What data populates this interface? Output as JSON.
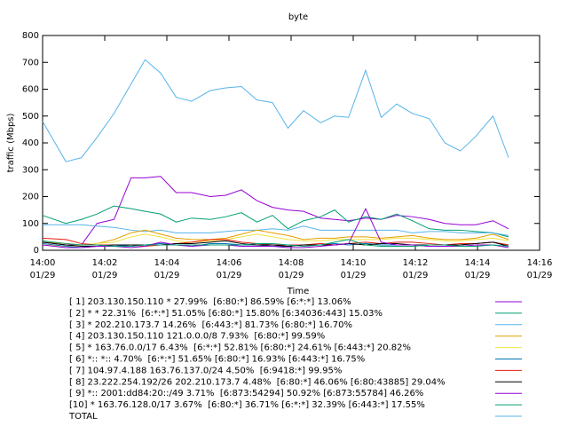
{
  "chart_data": {
    "type": "line",
    "title": "byte",
    "xlabel": "Time",
    "ylabel": "traffic (Mbps)",
    "x": [
      0,
      0.75,
      1.25,
      1.75,
      2.3,
      2.85,
      3.3,
      3.8,
      4.3,
      4.8,
      5.4,
      5.9,
      6.4,
      6.9,
      7.4,
      7.9,
      8.4,
      8.95,
      9.4,
      9.85,
      10.4,
      10.9,
      11.4,
      11.9,
      12.45,
      12.95,
      13.45,
      13.95,
      14.5,
      15.0
    ],
    "xlim": [
      0,
      16
    ],
    "xticks": [
      {
        "value": 0,
        "label": "14:00\n01/29"
      },
      {
        "value": 2,
        "label": "14:02\n01/29"
      },
      {
        "value": 4,
        "label": "14:04\n01/29"
      },
      {
        "value": 6,
        "label": "14:06\n01/29"
      },
      {
        "value": 8,
        "label": "14:08\n01/29"
      },
      {
        "value": 10,
        "label": "14:10\n01/29"
      },
      {
        "value": 12,
        "label": "14:12\n01/29"
      },
      {
        "value": 14,
        "label": "14:14\n01/29"
      },
      {
        "value": 16,
        "label": "14:16\n01/29"
      }
    ],
    "ylim": [
      0,
      800
    ],
    "yticks": [
      0,
      100,
      200,
      300,
      400,
      500,
      600,
      700,
      800
    ],
    "grid": false,
    "series": [
      {
        "name": "[ 1] 203.130.150.110 * 27.99%  [6:80:*] 86.59% [6:*:*] 13.06%",
        "color": "#9400d3",
        "values": [
          30,
          20,
          20,
          100,
          115,
          270,
          270,
          275,
          215,
          215,
          200,
          205,
          225,
          185,
          160,
          150,
          145,
          120,
          115,
          110,
          120,
          115,
          130,
          125,
          115,
          100,
          95,
          95,
          110,
          80
        ]
      },
      {
        "name": "[ 2] * * 22.31%  [6:*:*] 51.05% [6:80:*] 15.80% [6:34036:443] 15.03%",
        "color": "#009e73",
        "values": [
          130,
          100,
          115,
          135,
          165,
          155,
          145,
          135,
          105,
          120,
          115,
          125,
          140,
          105,
          130,
          80,
          110,
          125,
          150,
          105,
          125,
          115,
          135,
          110,
          80,
          75,
          75,
          70,
          65,
          50
        ]
      },
      {
        "name": "[ 3] * 202.210.173.7 14.26%  [6:443:*] 81.73% [6:80:*] 16.70%",
        "color": "#56b4e9",
        "values": [
          95,
          95,
          95,
          90,
          85,
          75,
          70,
          75,
          65,
          65,
          65,
          70,
          75,
          75,
          80,
          75,
          90,
          75,
          75,
          75,
          75,
          75,
          75,
          65,
          70,
          70,
          65,
          65,
          65,
          55
        ]
      },
      {
        "name": "[ 4] 203.130.150.110 121.0.0.0/8 7.93%  [6:80:*] 99.59%",
        "color": "#e69f00",
        "values": [
          30,
          25,
          20,
          25,
          40,
          65,
          75,
          60,
          45,
          40,
          40,
          45,
          60,
          75,
          65,
          55,
          40,
          45,
          45,
          50,
          50,
          45,
          50,
          55,
          45,
          40,
          40,
          45,
          60,
          40
        ]
      },
      {
        "name": "[ 5] * 163.76.0.0/17 6.43%  [6:*:*] 52.81% [6:80:*] 24.61% [6:443:*] 20.82%",
        "color": "#f0e442",
        "values": [
          20,
          15,
          20,
          25,
          30,
          50,
          60,
          50,
          35,
          30,
          35,
          40,
          50,
          60,
          50,
          40,
          35,
          35,
          40,
          40,
          40,
          40,
          45,
          45,
          40,
          35,
          35,
          40,
          45,
          35
        ]
      },
      {
        "name": "[ 6] *:: *:: 4.70%  [6:*:*] 51.65% [6:80:*] 16.93% [6:443:*] 16.75%",
        "color": "#0072b2",
        "values": [
          25,
          15,
          10,
          15,
          20,
          15,
          20,
          25,
          20,
          15,
          25,
          25,
          20,
          20,
          15,
          15,
          20,
          20,
          25,
          20,
          25,
          20,
          20,
          20,
          15,
          15,
          20,
          25,
          30,
          20
        ]
      },
      {
        "name": "[ 7] 104.97.4.188 163.76.137.0/24 4.50%  [6:9418:*] 99.95%",
        "color": "#e51e10",
        "values": [
          45,
          40,
          25,
          20,
          20,
          20,
          15,
          20,
          25,
          30,
          40,
          40,
          30,
          25,
          20,
          20,
          20,
          25,
          20,
          25,
          30,
          25,
          30,
          30,
          25,
          20,
          25,
          25,
          30,
          20
        ]
      },
      {
        "name": "[ 8] 23.222.254.192/26 202.210.173.7 4.48%  [6:80:*] 46.06% [6:80:43885] 29.04%",
        "color": "#000000",
        "values": [
          30,
          20,
          15,
          15,
          20,
          20,
          20,
          20,
          25,
          25,
          30,
          35,
          25,
          20,
          20,
          15,
          20,
          20,
          20,
          25,
          20,
          25,
          25,
          20,
          20,
          20,
          20,
          25,
          30,
          15
        ]
      },
      {
        "name": "[ 9] *:: 2001:dd84:20::/49 3.71%  [6:873:54294] 50.92% [6:873:55784] 46.26%",
        "color": "#9400d3",
        "values": [
          20,
          10,
          10,
          15,
          15,
          10,
          15,
          30,
          20,
          15,
          20,
          20,
          15,
          15,
          15,
          10,
          10,
          15,
          20,
          25,
          155,
          30,
          20,
          20,
          15,
          15,
          15,
          20,
          20,
          10
        ]
      },
      {
        "name": "[10] * 163.76.128.0/17 3.67%  [6:80:*] 36.71% [6:*:*] 32.39% [6:443:*] 17.55%",
        "color": "#009e73",
        "values": [
          35,
          25,
          20,
          20,
          15,
          15,
          20,
          20,
          20,
          20,
          20,
          20,
          20,
          25,
          25,
          20,
          15,
          20,
          30,
          40,
          20,
          15,
          15,
          15,
          20,
          20,
          15,
          15,
          20,
          15
        ]
      },
      {
        "name": "TOTAL",
        "color": "#56b4e9",
        "values": [
          480,
          330,
          345,
          420,
          510,
          620,
          710,
          660,
          570,
          555,
          595,
          605,
          610,
          560,
          550,
          455,
          520,
          475,
          500,
          495,
          670,
          495,
          545,
          510,
          490,
          400,
          370,
          425,
          500,
          345
        ]
      }
    ]
  }
}
